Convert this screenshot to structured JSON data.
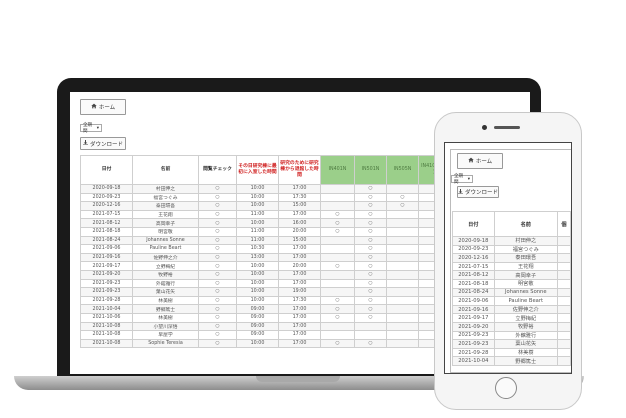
{
  "app": {
    "home_label": "ホーム",
    "filter_selected": "全期間",
    "download_label": "ダウンロード"
  },
  "laptop_table": {
    "headers": {
      "date": "日付",
      "name": "名前",
      "check": "閲覧チェック",
      "warn1": "その日研究棟に最初に入室した時間",
      "warn2": "研究のために研究棟から退館した時間",
      "in1": "IN401N",
      "in2": "IN501N",
      "in3": "IN505N",
      "in4": "IN410N (休憩室)"
    },
    "rows": [
      {
        "date": "2020-09-18",
        "name": "村田伸之",
        "check": "○",
        "t1": "10:00",
        "t2": "17:00",
        "c1": "",
        "c2": "○",
        "c3": "",
        "c4": "○"
      },
      {
        "date": "2020-09-23",
        "name": "福宮つぐみ",
        "check": "○",
        "t1": "10:00",
        "t2": "17:30",
        "c1": "",
        "c2": "○",
        "c3": "○",
        "c4": "○"
      },
      {
        "date": "2020-12-16",
        "name": "泰田環吾",
        "check": "○",
        "t1": "10:00",
        "t2": "15:00",
        "c1": "",
        "c2": "○",
        "c3": "○",
        "c4": "○"
      },
      {
        "date": "2021-07-15",
        "name": "王花翔",
        "check": "○",
        "t1": "11:00",
        "t2": "17:00",
        "c1": "○",
        "c2": "○",
        "c3": "",
        "c4": ""
      },
      {
        "date": "2021-08-12",
        "name": "高岡幸子",
        "check": "○",
        "t1": "10:00",
        "t2": "16:00",
        "c1": "○",
        "c2": "○",
        "c3": "",
        "c4": ""
      },
      {
        "date": "2021-08-18",
        "name": "明宮敬",
        "check": "○",
        "t1": "11:00",
        "t2": "20:00",
        "c1": "○",
        "c2": "○",
        "c3": "",
        "c4": ""
      },
      {
        "date": "2021-08-24",
        "name": "Johannes Sonne",
        "check": "○",
        "t1": "11:00",
        "t2": "15:00",
        "c1": "",
        "c2": "○",
        "c3": "",
        "c4": "○"
      },
      {
        "date": "2021-09-06",
        "name": "Pauline Beart",
        "check": "○",
        "t1": "10:30",
        "t2": "17:00",
        "c1": "",
        "c2": "○",
        "c3": "",
        "c4": ""
      },
      {
        "date": "2021-09-16",
        "name": "佐野伸之介",
        "check": "○",
        "t1": "13:00",
        "t2": "17:00",
        "c1": "",
        "c2": "○",
        "c3": "",
        "c4": ""
      },
      {
        "date": "2021-09-17",
        "name": "立野梅紀",
        "check": "○",
        "t1": "10:00",
        "t2": "20:00",
        "c1": "○",
        "c2": "○",
        "c3": "",
        "c4": ""
      },
      {
        "date": "2021-09-20",
        "name": "牧野裕",
        "check": "○",
        "t1": "10:00",
        "t2": "17:00",
        "c1": "",
        "c2": "○",
        "c3": "",
        "c4": ""
      },
      {
        "date": "2021-09-23",
        "name": "外舘雅行",
        "check": "○",
        "t1": "10:00",
        "t2": "17:00",
        "c1": "",
        "c2": "○",
        "c3": "",
        "c4": ""
      },
      {
        "date": "2021-09-23",
        "name": "葉山花矢",
        "check": "○",
        "t1": "10:00",
        "t2": "19:00",
        "c1": "",
        "c2": "○",
        "c3": "",
        "c4": "○"
      },
      {
        "date": "2021-09-28",
        "name": "林美樹",
        "check": "○",
        "t1": "10:00",
        "t2": "17:30",
        "c1": "○",
        "c2": "○",
        "c3": "",
        "c4": ""
      },
      {
        "date": "2021-10-04",
        "name": "野郷篤士",
        "check": "○",
        "t1": "09:00",
        "t2": "17:00",
        "c1": "○",
        "c2": "○",
        "c3": "",
        "c4": "○"
      },
      {
        "date": "2021-10-06",
        "name": "林美樹",
        "check": "○",
        "t1": "09:00",
        "t2": "17:00",
        "c1": "○",
        "c2": "○",
        "c3": "",
        "c4": ""
      },
      {
        "date": "2021-10-08",
        "name": "小望川深悟",
        "check": "○",
        "t1": "09:00",
        "t2": "17:00",
        "c1": "",
        "c2": "",
        "c3": "",
        "c4": "○"
      },
      {
        "date": "2021-10-08",
        "name": "早屋学",
        "check": "○",
        "t1": "09:00",
        "t2": "17:00",
        "c1": "",
        "c2": "",
        "c3": "",
        "c4": "○"
      },
      {
        "date": "2021-10-08",
        "name": "Sophie Teresia",
        "check": "○",
        "t1": "10:00",
        "t2": "17:00",
        "c1": "○",
        "c2": "○",
        "c3": "",
        "c4": ""
      }
    ]
  },
  "phone_table": {
    "headers": {
      "date": "日付",
      "name": "名前",
      "extra": "個"
    },
    "rows": [
      {
        "date": "2020-09-18",
        "name": "村田伸之"
      },
      {
        "date": "2020-09-23",
        "name": "福宮つぐみ"
      },
      {
        "date": "2020-12-16",
        "name": "泰田環吾"
      },
      {
        "date": "2021-07-15",
        "name": "王花翔"
      },
      {
        "date": "2021-08-12",
        "name": "高岡幸子"
      },
      {
        "date": "2021-08-18",
        "name": "明宮敬"
      },
      {
        "date": "2021-08-24",
        "name": "Johannes Sonne"
      },
      {
        "date": "2021-09-06",
        "name": "Pauline Beart"
      },
      {
        "date": "2021-09-16",
        "name": "佐野伸之介"
      },
      {
        "date": "2021-09-17",
        "name": "立野梅紀"
      },
      {
        "date": "2021-09-20",
        "name": "牧野裕"
      },
      {
        "date": "2021-09-23",
        "name": "外舘雅行"
      },
      {
        "date": "2021-09-23",
        "name": "葉山花矢"
      },
      {
        "date": "2021-09-28",
        "name": "林美樹"
      },
      {
        "date": "2021-10-04",
        "name": "野郷篤士"
      }
    ]
  },
  "icons": {
    "home": "home-icon",
    "download": "download-icon",
    "dropdown": "chevron-down-icon"
  }
}
